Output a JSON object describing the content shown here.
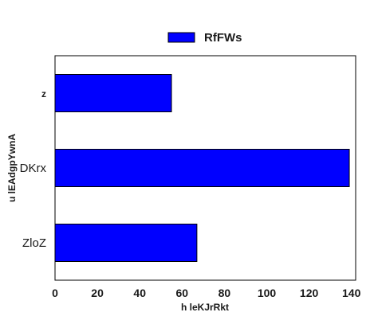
{
  "chart_data": {
    "type": "bar",
    "orientation": "horizontal",
    "categories": [
      "ZloZ",
      "DKrx",
      "z"
    ],
    "series": [
      {
        "name": "RfFWs",
        "values": [
          67,
          139,
          55
        ],
        "color": "#0000ff"
      }
    ],
    "xlabel": "h leKJrRkt",
    "ylabel": "u lEAdgpYwnA",
    "xlim": [
      0,
      142
    ],
    "xticks": [
      0,
      20,
      40,
      60,
      80,
      100,
      120,
      140
    ],
    "grid": false,
    "legend_position": "top-center"
  }
}
